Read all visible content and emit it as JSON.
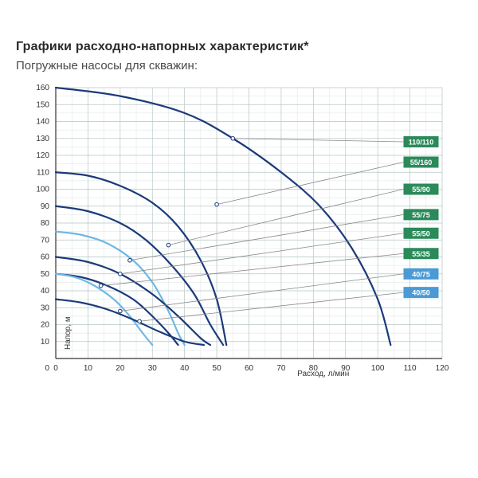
{
  "title": "Графики расходно-напорных характеристик*",
  "subtitle": "Погружные насосы для скважин:",
  "chart": {
    "type": "line",
    "background_color": "#ffffff",
    "grid_color": "#b8c8c8",
    "grid_minor_color": "#d8e4e4",
    "xlabel": "Расход, л/мин",
    "ylabel": "Напор, м",
    "label_fontsize": 10,
    "xlim": [
      0,
      120
    ],
    "ylim": [
      0,
      160
    ],
    "xtick_step": 10,
    "ytick_step": 10,
    "curve_width": 2.2,
    "colors": {
      "dark_blue": "#1b3a7a",
      "light_blue": "#6fb8e6",
      "green_box": "#2a8a5a",
      "blue_box": "#4a9ad6",
      "pointer_line": "#888888",
      "marker_stroke": "#1b3a7a"
    },
    "curves": [
      {
        "name": "110/110",
        "color": "#1b3a7a",
        "points": [
          [
            0,
            160
          ],
          [
            20,
            155
          ],
          [
            40,
            145
          ],
          [
            55,
            130
          ],
          [
            70,
            110
          ],
          [
            82,
            90
          ],
          [
            92,
            65
          ],
          [
            100,
            35
          ],
          [
            104,
            8
          ]
        ]
      },
      {
        "name": "55/160",
        "color": "#1b3a7a",
        "points": [
          [
            0,
            110
          ],
          [
            10,
            108
          ],
          [
            20,
            102
          ],
          [
            30,
            92
          ],
          [
            38,
            78
          ],
          [
            45,
            58
          ],
          [
            50,
            35
          ],
          [
            53,
            8
          ]
        ]
      },
      {
        "name": "55/90",
        "color": "#1b3a7a",
        "points": [
          [
            0,
            90
          ],
          [
            10,
            87
          ],
          [
            20,
            80
          ],
          [
            28,
            70
          ],
          [
            36,
            55
          ],
          [
            43,
            38
          ],
          [
            48,
            20
          ],
          [
            52,
            8
          ]
        ]
      },
      {
        "name": "55/75",
        "color": "#6fb8e6",
        "points": [
          [
            0,
            75
          ],
          [
            8,
            73
          ],
          [
            16,
            68
          ],
          [
            24,
            58
          ],
          [
            30,
            45
          ],
          [
            35,
            28
          ],
          [
            38,
            15
          ],
          [
            40,
            8
          ]
        ]
      },
      {
        "name": "55/50",
        "color": "#1b3a7a",
        "points": [
          [
            0,
            60
          ],
          [
            10,
            57
          ],
          [
            20,
            50
          ],
          [
            30,
            38
          ],
          [
            38,
            25
          ],
          [
            45,
            12
          ],
          [
            48,
            8
          ]
        ]
      },
      {
        "name": "55/35",
        "color": "#1b3a7a",
        "points": [
          [
            0,
            50
          ],
          [
            8,
            48
          ],
          [
            16,
            43
          ],
          [
            24,
            35
          ],
          [
            30,
            25
          ],
          [
            35,
            15
          ],
          [
            38,
            8
          ]
        ]
      },
      {
        "name": "40/75",
        "color": "#6fb8e6",
        "points": [
          [
            0,
            50
          ],
          [
            6,
            48
          ],
          [
            12,
            43
          ],
          [
            18,
            35
          ],
          [
            23,
            25
          ],
          [
            27,
            15
          ],
          [
            30,
            8
          ]
        ]
      },
      {
        "name": "40/50",
        "color": "#1b3a7a",
        "points": [
          [
            0,
            35
          ],
          [
            8,
            33
          ],
          [
            16,
            29
          ],
          [
            24,
            23
          ],
          [
            32,
            16
          ],
          [
            40,
            10
          ],
          [
            46,
            8
          ]
        ]
      }
    ],
    "pointers": [
      {
        "label": "110/110",
        "box_color": "#2a8a5a",
        "y_box": 128,
        "target_curve": "110/110",
        "tx": 55,
        "ty": 130
      },
      {
        "label": "55/160",
        "box_color": "#2a8a5a",
        "y_box": 116,
        "target_curve": "55/160",
        "tx": 50,
        "ty": 91
      },
      {
        "label": "55/90",
        "box_color": "#2a8a5a",
        "y_box": 100,
        "target_curve": "55/90",
        "tx": 35,
        "ty": 67
      },
      {
        "label": "55/75",
        "box_color": "#2a8a5a",
        "y_box": 85,
        "target_curve": "55/75",
        "tx": 23,
        "ty": 58
      },
      {
        "label": "55/50",
        "box_color": "#2a8a5a",
        "y_box": 74,
        "target_curve": "55/50",
        "tx": 20,
        "ty": 50
      },
      {
        "label": "55/35",
        "box_color": "#2a8a5a",
        "y_box": 62,
        "target_curve": "55/35",
        "tx": 14,
        "ty": 43
      },
      {
        "label": "40/75",
        "box_color": "#4a9ad6",
        "y_box": 50,
        "target_curve": "40/75",
        "tx": 20,
        "ty": 28
      },
      {
        "label": "40/50",
        "box_color": "#4a9ad6",
        "y_box": 39,
        "target_curve": "40/50",
        "tx": 26,
        "ty": 22
      }
    ],
    "marker_radius": 2.3
  }
}
